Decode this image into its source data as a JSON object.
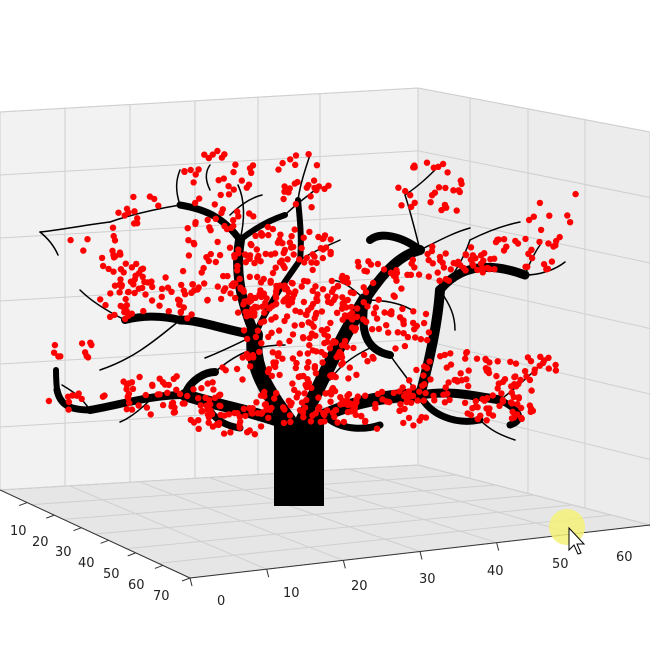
{
  "chart_data": {
    "type": "scatter",
    "projection": "3d",
    "title": "",
    "axes": {
      "x": {
        "ticks": [
          "10",
          "20",
          "30",
          "40",
          "50",
          "60",
          "70"
        ]
      },
      "y": {
        "ticks": [
          "0",
          "10",
          "20",
          "30",
          "40",
          "50",
          "60"
        ]
      }
    },
    "grid": true,
    "series": [
      {
        "marker": "dot",
        "color": "#ff0000"
      },
      {
        "marker": "branch",
        "color": "#000000"
      }
    ]
  },
  "cursor": {
    "icon": "mouse-pointer-icon",
    "highlight_color": "#f5f078"
  }
}
